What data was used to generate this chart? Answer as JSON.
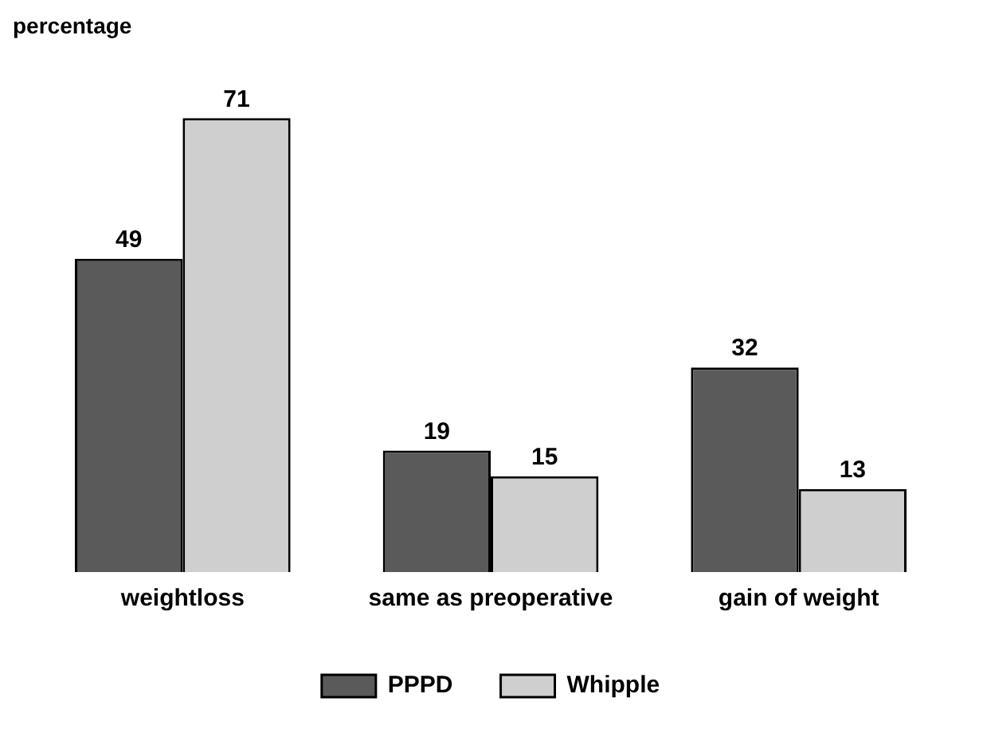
{
  "chart_data": {
    "type": "bar",
    "ylabel": "percentage",
    "categories": [
      "weightloss",
      "same as preoperative",
      "gain of weight"
    ],
    "series": [
      {
        "name": "PPPD",
        "color": "#5a5a5a",
        "values": [
          49,
          19,
          32
        ]
      },
      {
        "name": "Whipple",
        "color": "#cfcfcf",
        "values": [
          71,
          15,
          13
        ]
      }
    ],
    "data_labels": true,
    "legend": "bottom",
    "grid": false
  }
}
